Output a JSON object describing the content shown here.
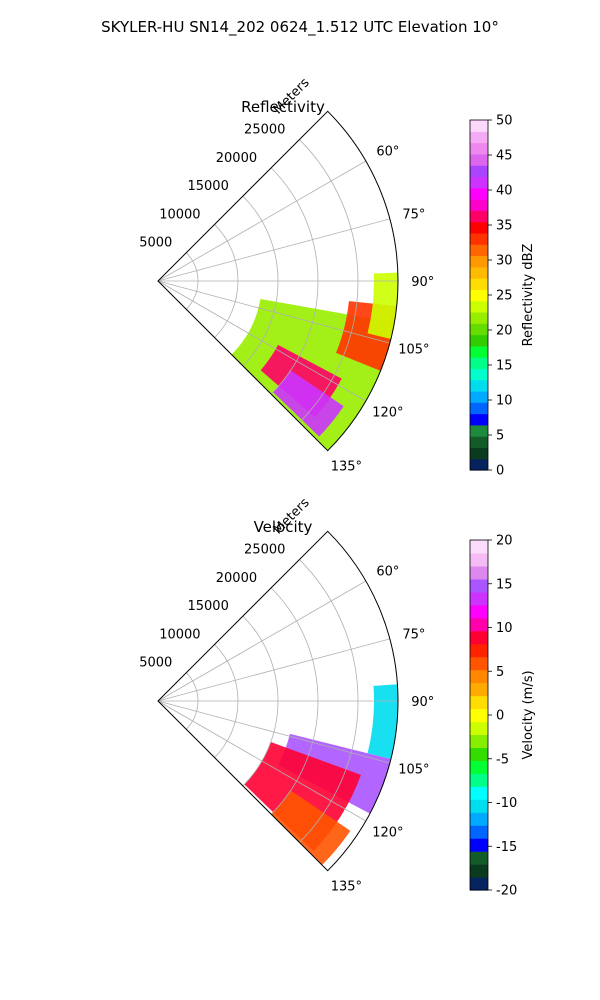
{
  "suptitle": "SKYLER-HU  SN14_202  0624_1.512 UTC Elevation 10°",
  "chart_data": [
    {
      "type": "polar-sector",
      "title": "Reflectivity",
      "radial_axis_label": "Meters",
      "radial_ticks": [
        "5000",
        "10000",
        "15000",
        "20000",
        "25000"
      ],
      "radial_tick_values": [
        5000,
        10000,
        15000,
        20000,
        25000
      ],
      "rlim": [
        0,
        30000
      ],
      "angular_ticks": [
        "60°",
        "75°",
        "90°",
        "105°",
        "120°",
        "135°"
      ],
      "angular_tick_values": [
        60,
        75,
        90,
        105,
        120,
        135
      ],
      "theta_range_deg": [
        45,
        135
      ],
      "grid": true,
      "colorbar": {
        "label": "Reflectivity dBZ",
        "ticks": [
          "0",
          "5",
          "10",
          "15",
          "20",
          "25",
          "30",
          "35",
          "40",
          "45",
          "50"
        ],
        "range": [
          0,
          50
        ]
      },
      "echo_regions": [
        {
          "az": [
            100,
            135
          ],
          "r": [
            13000,
            30000
          ],
          "value": 22
        },
        {
          "az": [
            96,
            112
          ],
          "r": [
            24000,
            30000
          ],
          "value": 33
        },
        {
          "az": [
            118,
            131
          ],
          "r": [
            17000,
            26000
          ],
          "value": 36
        },
        {
          "az": [
            88,
            104
          ],
          "r": [
            27000,
            30000
          ],
          "value": 24
        },
        {
          "az": [
            124,
            134
          ],
          "r": [
            20000,
            28000
          ],
          "value": 41
        }
      ],
      "colors": [
        "#06235f",
        "#0b3b1f",
        "#125c2a",
        "#1d8a3d",
        "#0000ff",
        "#0066ff",
        "#00aaff",
        "#00ddee",
        "#00ffcc",
        "#00ff88",
        "#00ff33",
        "#33cc00",
        "#66dd00",
        "#99ee00",
        "#ccff00",
        "#ffff00",
        "#ffdd00",
        "#ffbb00",
        "#ff9900",
        "#ff6600",
        "#ff3300",
        "#ff0000",
        "#ff0066",
        "#ff00cc",
        "#ff00ff",
        "#cc33ff",
        "#aa44ff",
        "#dd66ee",
        "#ee88ee",
        "#f4aaf4",
        "#fcd8fc"
      ]
    },
    {
      "type": "polar-sector",
      "title": "Velocity",
      "radial_axis_label": "Meters",
      "radial_ticks": [
        "5000",
        "10000",
        "15000",
        "20000",
        "25000"
      ],
      "radial_tick_values": [
        5000,
        10000,
        15000,
        20000,
        25000
      ],
      "rlim": [
        0,
        30000
      ],
      "angular_ticks": [
        "60°",
        "75°",
        "90°",
        "105°",
        "120°",
        "135°"
      ],
      "angular_tick_values": [
        60,
        75,
        90,
        105,
        120,
        135
      ],
      "theta_range_deg": [
        45,
        135
      ],
      "grid": true,
      "colorbar": {
        "label": "Velocity (m/s)",
        "ticks": [
          "-20",
          "-15",
          "-10",
          "-5",
          "0",
          "5",
          "10",
          "15",
          "20"
        ],
        "range": [
          -20,
          20
        ]
      },
      "echo_regions": [
        {
          "az": [
            86,
            104
          ],
          "r": [
            27000,
            30000
          ],
          "value": -11
        },
        {
          "az": [
            104,
            118
          ],
          "r": [
            17000,
            30000
          ],
          "value": 15
        },
        {
          "az": [
            110,
            134
          ],
          "r": [
            15000,
            27000
          ],
          "value": 9
        },
        {
          "az": [
            124,
            135
          ],
          "r": [
            20000,
            29000
          ],
          "value": 6
        }
      ],
      "colors": [
        "#06235f",
        "#0b3b1f",
        "#125c2a",
        "#0000ff",
        "#0066ff",
        "#00aaff",
        "#00ddee",
        "#00ffff",
        "#00ff88",
        "#00ff33",
        "#33dd00",
        "#88ee00",
        "#ccff00",
        "#ffff00",
        "#ffdd00",
        "#ffaa00",
        "#ff8800",
        "#ff5500",
        "#ff2200",
        "#ff0033",
        "#ff00aa",
        "#ff00ff",
        "#cc33ff",
        "#aa55ff",
        "#dd88ee",
        "#f4bbf4",
        "#fcdcfc"
      ]
    }
  ]
}
